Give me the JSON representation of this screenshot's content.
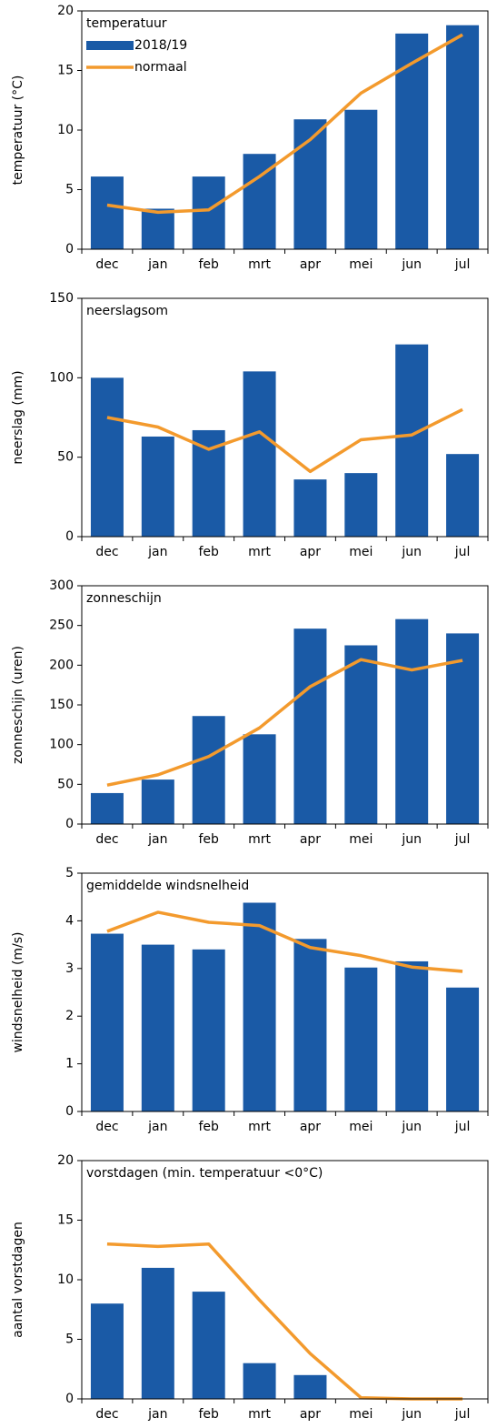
{
  "chart_data": [
    {
      "type": "bar",
      "title": "temperatuur",
      "y_label": "temperatuur (°C)",
      "categories": [
        "dec",
        "jan",
        "feb",
        "mrt",
        "apr",
        "mei",
        "jun",
        "jul"
      ],
      "ylim": [
        0,
        20
      ],
      "yticks": [
        0,
        5,
        10,
        15,
        20
      ],
      "legend": "top-left",
      "series": [
        {
          "name": "2018/19",
          "color": "#1a5aa6",
          "kind": "bar",
          "values": [
            6.1,
            3.4,
            6.1,
            8.0,
            10.9,
            11.7,
            18.1,
            18.8
          ]
        },
        {
          "name": "normaal",
          "color": "#f39a2d",
          "kind": "line",
          "values": [
            3.7,
            3.1,
            3.3,
            6.1,
            9.2,
            13.1,
            15.6,
            18.0
          ]
        }
      ]
    },
    {
      "type": "bar",
      "title": "neerslagsom",
      "y_label": "neerslag (mm)",
      "categories": [
        "dec",
        "jan",
        "feb",
        "mrt",
        "apr",
        "mei",
        "jun",
        "jul"
      ],
      "ylim": [
        0,
        150
      ],
      "yticks": [
        0,
        50,
        100,
        150
      ],
      "series": [
        {
          "color": "#1a5aa6",
          "kind": "bar",
          "values": [
            100,
            63,
            67,
            104,
            36,
            40,
            121,
            52
          ]
        },
        {
          "color": "#f39a2d",
          "kind": "line",
          "values": [
            75,
            69,
            55,
            66,
            41,
            61,
            64,
            80
          ]
        }
      ]
    },
    {
      "type": "bar",
      "title": "zonneschijn",
      "y_label": "zonneschijn (uren)",
      "categories": [
        "dec",
        "jan",
        "feb",
        "mrt",
        "apr",
        "mei",
        "jun",
        "jul"
      ],
      "ylim": [
        0,
        300
      ],
      "yticks": [
        0,
        50,
        100,
        150,
        200,
        250,
        300
      ],
      "series": [
        {
          "color": "#1a5aa6",
          "kind": "bar",
          "values": [
            39,
            56,
            136,
            113,
            246,
            225,
            258,
            240
          ]
        },
        {
          "color": "#f39a2d",
          "kind": "line",
          "values": [
            49,
            62,
            85,
            121,
            173,
            207,
            194,
            206
          ]
        }
      ]
    },
    {
      "type": "bar",
      "title": "gemiddelde windsnelheid",
      "y_label": "windsnelheid (m/s)",
      "categories": [
        "dec",
        "jan",
        "feb",
        "mrt",
        "apr",
        "mei",
        "jun",
        "jul"
      ],
      "ylim": [
        0,
        5
      ],
      "yticks": [
        0,
        1,
        2,
        3,
        4,
        5
      ],
      "series": [
        {
          "color": "#1a5aa6",
          "kind": "bar",
          "values": [
            3.73,
            3.5,
            3.4,
            4.38,
            3.62,
            3.02,
            3.15,
            2.6
          ]
        },
        {
          "color": "#f39a2d",
          "kind": "line",
          "values": [
            3.78,
            4.18,
            3.97,
            3.9,
            3.44,
            3.27,
            3.03,
            2.94
          ]
        }
      ]
    },
    {
      "type": "bar",
      "title": "vorstdagen (min. temperatuur <0°C)",
      "y_label": "aantal vorstdagen",
      "categories": [
        "dec",
        "jan",
        "feb",
        "mrt",
        "apr",
        "mei",
        "jun",
        "jul"
      ],
      "ylim": [
        0,
        20
      ],
      "yticks": [
        0,
        5,
        10,
        15,
        20
      ],
      "series": [
        {
          "color": "#1a5aa6",
          "kind": "bar",
          "values": [
            8,
            11,
            9,
            3,
            2,
            0,
            0,
            0
          ]
        },
        {
          "color": "#f39a2d",
          "kind": "line",
          "values": [
            13,
            12.8,
            13,
            8.3,
            3.8,
            0.1,
            0,
            0
          ]
        }
      ]
    }
  ]
}
